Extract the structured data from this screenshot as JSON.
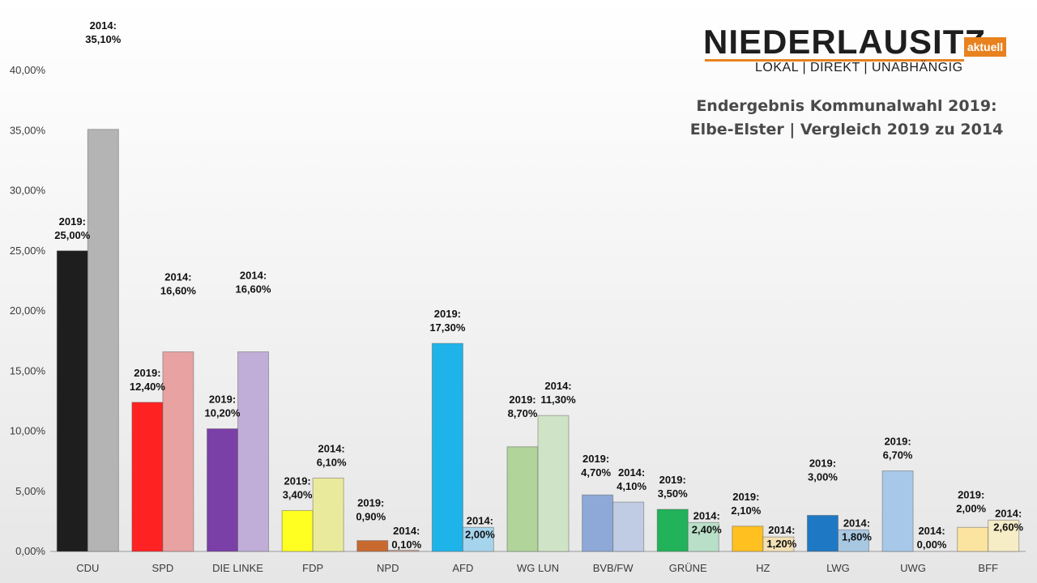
{
  "logo": {
    "name": "NIEDERLAUSITZ",
    "badge": "aktuell",
    "tagline": "LOKAL | DIREKT | UNABHÄNGIG"
  },
  "chart_data": {
    "type": "bar",
    "title": "Endergebnis Kommunalwahl 2019:",
    "subtitle": "Elbe-Elster | Vergleich 2019 zu 2014",
    "categories": [
      "CDU",
      "SPD",
      "DIE LINKE",
      "FDP",
      "NPD",
      "AFD",
      "WG LUN",
      "BVB/FW",
      "GRÜNE",
      "HZ",
      "LWG",
      "UWG",
      "BFF"
    ],
    "ylim": [
      0,
      40
    ],
    "yticks": [
      "0,00%",
      "5,00%",
      "10,00%",
      "15,00%",
      "20,00%",
      "25,00%",
      "30,00%",
      "35,00%",
      "40,00%"
    ],
    "grid": false,
    "series": [
      {
        "year": "2019",
        "values": [
          25.0,
          12.4,
          10.2,
          3.4,
          0.9,
          17.3,
          8.7,
          4.7,
          3.5,
          2.1,
          3.0,
          6.7,
          2.0
        ],
        "labels": [
          "25,00%",
          "12,40%",
          "10,20%",
          "3,40%",
          "0,90%",
          "17,30%",
          "8,70%",
          "4,70%",
          "3,50%",
          "2,10%",
          "3,00%",
          "6,70%",
          "2,00%"
        ],
        "colors": [
          "#1e1e1e",
          "#ff2222",
          "#7b3fa8",
          "#ffff22",
          "#c86a30",
          "#1eb4ea",
          "#b0d49a",
          "#8ea8d8",
          "#22b25a",
          "#ffc020",
          "#1f78c4",
          "#a8c8ea",
          "#fbe4a0"
        ]
      },
      {
        "year": "2014",
        "values": [
          35.1,
          16.6,
          16.6,
          6.1,
          0.1,
          2.0,
          11.3,
          4.1,
          2.4,
          1.2,
          1.8,
          0.0,
          2.6
        ],
        "labels": [
          "35,10%",
          "16,60%",
          "16,60%",
          "6,10%",
          "0,10%",
          "2,00%",
          "11,30%",
          "4,10%",
          "2,40%",
          "1,20%",
          "1,80%",
          "0,00%",
          "2,60%"
        ],
        "colors": [
          "#b4b4b4",
          "#e8a2a2",
          "#c0aed8",
          "#eaea9c",
          "#d8b09a",
          "#a6d4ec",
          "#cfe4c6",
          "#c0cce4",
          "#b8e0c8",
          "#f3e0b4",
          "#a8c8e2",
          "#d6e4f2",
          "#f6ecc6"
        ]
      }
    ]
  }
}
